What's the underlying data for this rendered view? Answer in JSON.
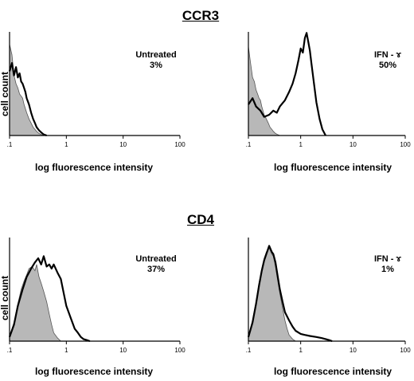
{
  "sections": [
    {
      "title": "CCR3"
    },
    {
      "title": "CD4"
    }
  ],
  "chart_data": [
    {
      "type": "area",
      "section": "CCR3",
      "ylabel": "cell count",
      "xlabel": "log fluorescence intensity",
      "xscale": "log",
      "xlim": [
        0.1,
        100
      ],
      "xticks": [
        ".1",
        "1",
        "10",
        "100"
      ],
      "annotation": [
        "Untreated",
        "3%"
      ],
      "series": [
        {
          "style": "filled-gray",
          "x": [
            0.1,
            0.11,
            0.12,
            0.13,
            0.14,
            0.15,
            0.16,
            0.17,
            0.18,
            0.19,
            0.2,
            0.22,
            0.24,
            0.26,
            0.28,
            0.3,
            0.33,
            0.36,
            0.4
          ],
          "y": [
            0.88,
            0.78,
            0.58,
            0.5,
            0.46,
            0.4,
            0.38,
            0.36,
            0.3,
            0.26,
            0.22,
            0.16,
            0.12,
            0.08,
            0.06,
            0.04,
            0.02,
            0.01,
            0
          ]
        },
        {
          "style": "outline-black",
          "x": [
            0.1,
            0.11,
            0.12,
            0.13,
            0.14,
            0.15,
            0.16,
            0.17,
            0.18,
            0.19,
            0.2,
            0.22,
            0.24,
            0.26,
            0.28,
            0.3,
            0.33,
            0.36,
            0.4,
            0.45
          ],
          "y": [
            0.62,
            0.7,
            0.58,
            0.66,
            0.56,
            0.6,
            0.52,
            0.5,
            0.46,
            0.42,
            0.36,
            0.3,
            0.22,
            0.16,
            0.12,
            0.08,
            0.05,
            0.03,
            0.01,
            0
          ]
        }
      ]
    },
    {
      "type": "area",
      "section": "CCR3",
      "ylabel": "",
      "xlabel": "log fluorescence intensity",
      "xscale": "log",
      "xlim": [
        0.1,
        100
      ],
      "xticks": [
        ".1",
        "1",
        "10",
        "100"
      ],
      "annotation": [
        "IFN - ɤ",
        "50%"
      ],
      "series": [
        {
          "style": "filled-gray",
          "x": [
            0.1,
            0.11,
            0.12,
            0.13,
            0.14,
            0.15,
            0.16,
            0.17,
            0.18,
            0.19,
            0.2,
            0.22,
            0.24,
            0.26,
            0.28,
            0.3,
            0.33,
            0.36,
            0.4
          ],
          "y": [
            0.86,
            0.7,
            0.56,
            0.52,
            0.44,
            0.4,
            0.36,
            0.34,
            0.28,
            0.24,
            0.2,
            0.16,
            0.12,
            0.08,
            0.06,
            0.04,
            0.02,
            0.01,
            0
          ]
        },
        {
          "style": "outline-black",
          "x": [
            0.1,
            0.12,
            0.14,
            0.17,
            0.2,
            0.25,
            0.3,
            0.35,
            0.4,
            0.5,
            0.6,
            0.7,
            0.8,
            0.9,
            1.0,
            1.1,
            1.2,
            1.3,
            1.4,
            1.5,
            1.6,
            1.8,
            2.0,
            2.3,
            2.6,
            3.0
          ],
          "y": [
            0.3,
            0.36,
            0.28,
            0.24,
            0.18,
            0.2,
            0.24,
            0.22,
            0.28,
            0.34,
            0.42,
            0.5,
            0.6,
            0.72,
            0.84,
            0.8,
            0.94,
            0.99,
            0.9,
            0.82,
            0.7,
            0.5,
            0.32,
            0.16,
            0.06,
            0
          ]
        }
      ]
    },
    {
      "type": "area",
      "section": "CD4",
      "ylabel": "cell count",
      "xlabel": "log fluorescence intensity",
      "xscale": "log",
      "xlim": [
        0.1,
        100
      ],
      "xticks": [
        ".1",
        "1",
        "10",
        "100"
      ],
      "annotation": [
        "Untreated",
        "37%"
      ],
      "series": [
        {
          "style": "filled-gray",
          "x": [
            0.1,
            0.12,
            0.14,
            0.16,
            0.18,
            0.2,
            0.22,
            0.25,
            0.28,
            0.3,
            0.33,
            0.36,
            0.4,
            0.45,
            0.5,
            0.55,
            0.6,
            0.7,
            0.8
          ],
          "y": [
            0.05,
            0.18,
            0.36,
            0.5,
            0.58,
            0.64,
            0.7,
            0.72,
            0.68,
            0.74,
            0.62,
            0.56,
            0.48,
            0.38,
            0.26,
            0.16,
            0.08,
            0.03,
            0
          ]
        },
        {
          "style": "outline-black",
          "x": [
            0.1,
            0.12,
            0.14,
            0.17,
            0.2,
            0.24,
            0.28,
            0.32,
            0.36,
            0.4,
            0.45,
            0.5,
            0.55,
            0.6,
            0.7,
            0.8,
            0.9,
            1.0,
            1.2,
            1.4,
            1.6,
            1.8,
            2.0,
            2.3,
            2.6
          ],
          "y": [
            0.04,
            0.16,
            0.34,
            0.5,
            0.62,
            0.7,
            0.76,
            0.8,
            0.74,
            0.82,
            0.72,
            0.74,
            0.7,
            0.74,
            0.66,
            0.6,
            0.46,
            0.34,
            0.22,
            0.12,
            0.08,
            0.04,
            0.02,
            0.01,
            0
          ]
        }
      ]
    },
    {
      "type": "area",
      "section": "CD4",
      "ylabel": "",
      "xlabel": "log fluorescence intensity",
      "xscale": "log",
      "xlim": [
        0.1,
        100
      ],
      "xticks": [
        ".1",
        "1",
        "10",
        "100"
      ],
      "annotation": [
        "IFN - ɤ",
        "1%"
      ],
      "series": [
        {
          "style": "filled-gray",
          "x": [
            0.1,
            0.12,
            0.14,
            0.16,
            0.18,
            0.2,
            0.22,
            0.25,
            0.28,
            0.3,
            0.33,
            0.36,
            0.4,
            0.45,
            0.5,
            0.55,
            0.6,
            0.7,
            0.8
          ],
          "y": [
            0.05,
            0.2,
            0.38,
            0.56,
            0.7,
            0.8,
            0.86,
            0.9,
            0.84,
            0.82,
            0.72,
            0.6,
            0.46,
            0.32,
            0.2,
            0.12,
            0.06,
            0.02,
            0
          ]
        },
        {
          "style": "outline-black",
          "x": [
            0.1,
            0.12,
            0.14,
            0.16,
            0.18,
            0.2,
            0.22,
            0.25,
            0.28,
            0.3,
            0.33,
            0.36,
            0.4,
            0.45,
            0.5,
            0.6,
            0.7,
            0.8,
            1.0,
            1.2,
            1.5,
            2.0,
            2.5,
            3.0,
            3.5,
            4.0
          ],
          "y": [
            0.04,
            0.18,
            0.36,
            0.54,
            0.68,
            0.78,
            0.84,
            0.92,
            0.86,
            0.84,
            0.76,
            0.64,
            0.5,
            0.38,
            0.28,
            0.2,
            0.14,
            0.1,
            0.07,
            0.06,
            0.05,
            0.04,
            0.03,
            0.02,
            0.01,
            0
          ]
        }
      ]
    }
  ]
}
